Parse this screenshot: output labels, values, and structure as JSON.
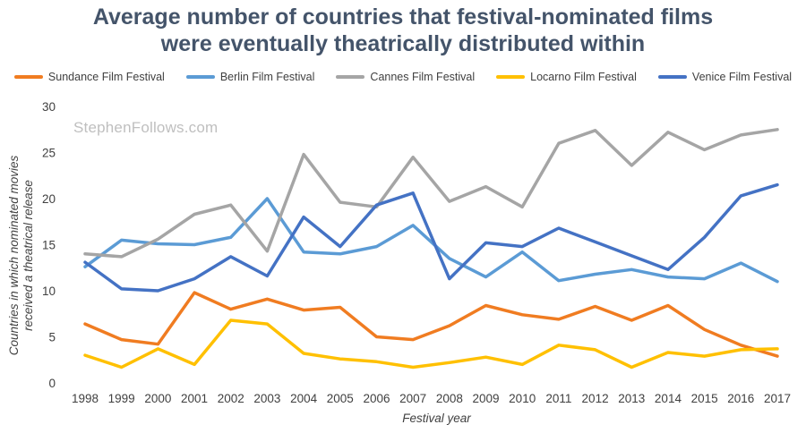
{
  "chart_data": {
    "type": "line",
    "title_line1": "Average number of countries that festival-nominated films",
    "title_line2": "were eventually theatrically distributed within",
    "watermark": "StephenFollows.com",
    "xlabel": "Festival year",
    "ylabel_line1": "Countries in which nominated movies",
    "ylabel_line2": "received a theatrical release",
    "ylim": [
      0,
      30
    ],
    "yticks": [
      0,
      5,
      10,
      15,
      20,
      25,
      30
    ],
    "grid": false,
    "legend_position": "top",
    "categories": [
      "1998",
      "1999",
      "2000",
      "2001",
      "2002",
      "2003",
      "2004",
      "2005",
      "2006",
      "2007",
      "2008",
      "2009",
      "2010",
      "2011",
      "2012",
      "2013",
      "2014",
      "2015",
      "2016",
      "2017"
    ],
    "series": [
      {
        "name": "Sundance Film Festival",
        "color": "#f07c21",
        "values": [
          6.4,
          4.7,
          4.2,
          9.8,
          8.0,
          9.1,
          7.9,
          8.2,
          5.0,
          4.7,
          6.2,
          8.4,
          7.4,
          6.9,
          8.3,
          6.8,
          8.4,
          5.8,
          4.1,
          2.9
        ]
      },
      {
        "name": "Berlin Film Festival",
        "color": "#5b9bd5",
        "values": [
          12.6,
          15.5,
          15.1,
          15.0,
          15.8,
          20.0,
          14.2,
          14.0,
          14.8,
          17.1,
          13.5,
          11.5,
          14.2,
          11.1,
          11.8,
          12.3,
          11.5,
          11.3,
          13.0,
          11.0
        ]
      },
      {
        "name": "Cannes Film Festival",
        "color": "#a5a5a5",
        "values": [
          14.0,
          13.7,
          15.6,
          18.3,
          19.3,
          14.3,
          24.8,
          19.6,
          19.1,
          24.5,
          19.7,
          21.3,
          19.1,
          26.0,
          27.4,
          23.6,
          27.2,
          25.3,
          26.9,
          27.5
        ]
      },
      {
        "name": "Locarno Film Festival",
        "color": "#ffc000",
        "values": [
          3.0,
          1.7,
          3.7,
          2.0,
          6.8,
          6.4,
          3.2,
          2.6,
          2.3,
          1.7,
          2.2,
          2.8,
          2.0,
          4.1,
          3.6,
          1.7,
          3.3,
          2.9,
          3.6,
          3.7
        ]
      },
      {
        "name": "Venice Film Festival",
        "color": "#4472c4",
        "values": [
          13.1,
          10.2,
          10.0,
          11.3,
          13.7,
          11.6,
          18.0,
          14.8,
          19.3,
          20.6,
          11.3,
          15.2,
          14.8,
          16.8,
          15.3,
          13.8,
          12.3,
          15.8,
          20.3,
          21.5
        ]
      }
    ]
  }
}
